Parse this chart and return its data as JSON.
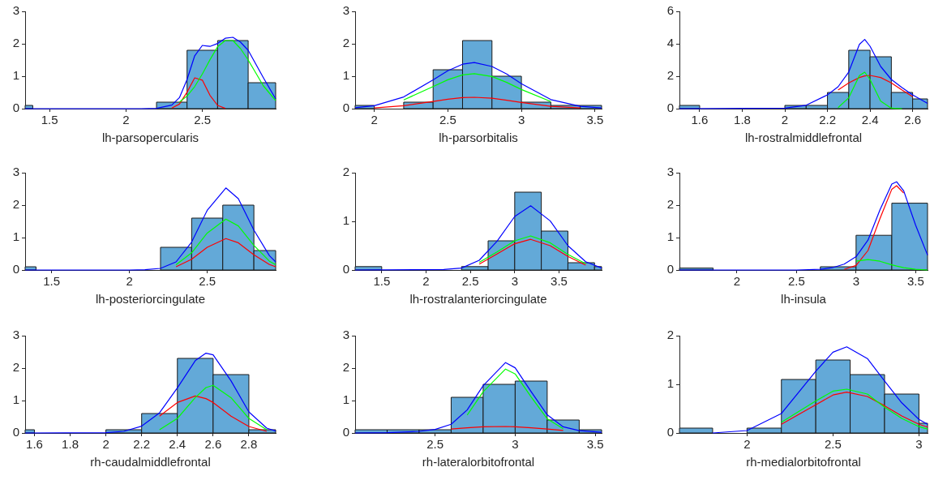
{
  "chart_data": [
    {
      "type": "histogram",
      "xlabel": "lh-parsopercularis",
      "bins": [
        1.34,
        1.39,
        2.2,
        2.4,
        2.6,
        2.8,
        2.98
      ],
      "values": [
        0.1,
        0,
        0.2,
        1.8,
        2.1,
        0.8
      ],
      "color": "#63a9d8",
      "xlim": [
        1.34,
        2.98
      ],
      "xticks": [
        1.5,
        2,
        2.5
      ],
      "ylim": [
        0,
        3
      ],
      "yticks": [
        0,
        1,
        2,
        3
      ],
      "series": [
        {
          "type": "line",
          "color": "#ff0000",
          "x": [
            2.3,
            2.35,
            2.4,
            2.45,
            2.5,
            2.55,
            2.6,
            2.65
          ],
          "values": [
            0.02,
            0.14,
            0.51,
            0.95,
            0.88,
            0.41,
            0.1,
            0.01
          ]
        },
        {
          "type": "line",
          "color": "#00ff00",
          "x": [
            2.35,
            2.4,
            2.45,
            2.5,
            2.55,
            2.6,
            2.65,
            2.7,
            2.75,
            2.8,
            2.9,
            2.98
          ],
          "values": [
            0.2,
            0.39,
            0.68,
            1.07,
            1.51,
            1.91,
            2.1,
            2.1,
            1.85,
            1.5,
            0.7,
            0.25
          ]
        },
        {
          "type": "line",
          "color": "#0000ff",
          "x": [
            1.34,
            2.1,
            2.2,
            2.3,
            2.35,
            2.4,
            2.45,
            2.5,
            2.55,
            2.6,
            2.65,
            2.7,
            2.75,
            2.8,
            2.9,
            2.98
          ],
          "values": [
            0,
            0,
            0.01,
            0.11,
            0.34,
            0.9,
            1.63,
            1.95,
            1.92,
            2.01,
            2.17,
            2.2,
            2.05,
            1.8,
            0.95,
            0.3
          ]
        }
      ]
    },
    {
      "type": "histogram",
      "xlabel": "lh-parsorbitalis",
      "bins": [
        1.87,
        2.0,
        2.2,
        2.4,
        2.6,
        2.8,
        3.0,
        3.2,
        3.4,
        3.545
      ],
      "values": [
        0.1,
        0,
        0.2,
        1.2,
        2.1,
        1.0,
        0.2,
        0.1,
        0.1
      ],
      "color": "#63a9d8",
      "xlim": [
        1.87,
        3.545
      ],
      "xticks": [
        2,
        2.5,
        3,
        3.5
      ],
      "ylim": [
        0,
        3
      ],
      "yticks": [
        0,
        1,
        2,
        3
      ],
      "series": [
        {
          "type": "line",
          "color": "#ff0000",
          "x": [
            2.0,
            2.2,
            2.4,
            2.5,
            2.6,
            2.68,
            2.8,
            2.9,
            3.0,
            3.2,
            3.4
          ],
          "values": [
            0.02,
            0.09,
            0.22,
            0.29,
            0.34,
            0.35,
            0.32,
            0.26,
            0.19,
            0.07,
            0.02
          ]
        },
        {
          "type": "line",
          "color": "#00ff00",
          "x": [
            2.2,
            2.4,
            2.5,
            2.6,
            2.68,
            2.8,
            2.9,
            3.0,
            3.2
          ],
          "values": [
            0.27,
            0.68,
            0.89,
            1.04,
            1.08,
            0.99,
            0.81,
            0.59,
            0.22
          ]
        },
        {
          "type": "line",
          "color": "#0000ff",
          "x": [
            1.87,
            2.0,
            2.2,
            2.4,
            2.5,
            2.6,
            2.68,
            2.8,
            2.9,
            3.0,
            3.2,
            3.4,
            3.545
          ],
          "values": [
            0.03,
            0.09,
            0.36,
            0.89,
            1.17,
            1.37,
            1.42,
            1.3,
            1.07,
            0.77,
            0.28,
            0.07,
            0.02
          ]
        }
      ]
    },
    {
      "type": "histogram",
      "xlabel": "lh-rostralmiddlefrontal",
      "bins": [
        1.505,
        1.6,
        2.0,
        2.1,
        2.2,
        2.3,
        2.4,
        2.5,
        2.6,
        2.67
      ],
      "values": [
        0.2,
        0,
        0.2,
        0.2,
        1.0,
        3.6,
        3.2,
        1.0,
        0.6
      ],
      "color": "#63a9d8",
      "xlim": [
        1.505,
        2.67
      ],
      "xticks": [
        1.6,
        1.8,
        2,
        2.2,
        2.4,
        2.6
      ],
      "ylim": [
        0,
        6
      ],
      "yticks": [
        0,
        2,
        4,
        6
      ],
      "series": [
        {
          "type": "line",
          "color": "#ff0000",
          "x": [
            2.25,
            2.3,
            2.35,
            2.375,
            2.4,
            2.45,
            2.5,
            2.55,
            2.6
          ],
          "values": [
            1.15,
            1.59,
            1.92,
            2.02,
            2.05,
            1.92,
            1.59,
            1.15,
            0.74
          ]
        },
        {
          "type": "line",
          "color": "#00ff00",
          "x": [
            2.25,
            2.3,
            2.35,
            2.375,
            2.4,
            2.45,
            2.5,
            2.55
          ],
          "values": [
            0.06,
            0.67,
            2.04,
            2.25,
            1.8,
            0.46,
            0.03,
            0
          ]
        },
        {
          "type": "line",
          "color": "#0000ff",
          "x": [
            1.505,
            2.0,
            2.1,
            2.2,
            2.25,
            2.3,
            2.35,
            2.375,
            2.4,
            2.45,
            2.5,
            2.55,
            2.6,
            2.67
          ],
          "values": [
            0,
            0.03,
            0.21,
            0.85,
            1.35,
            2.26,
            3.96,
            4.27,
            3.85,
            2.6,
            1.8,
            1.3,
            0.85,
            0.32
          ]
        }
      ]
    },
    {
      "type": "histogram",
      "xlabel": "lh-posteriorcingulate",
      "bins": [
        1.33,
        1.4,
        2.2,
        2.4,
        2.6,
        2.8,
        2.94
      ],
      "values": [
        0.1,
        0,
        0.7,
        1.6,
        2.0,
        0.6
      ],
      "color": "#63a9d8",
      "xlim": [
        1.33,
        2.94
      ],
      "xticks": [
        1.5,
        2,
        2.5
      ],
      "ylim": [
        0,
        3
      ],
      "yticks": [
        0,
        1,
        2,
        3
      ],
      "series": [
        {
          "type": "line",
          "color": "#ff0000",
          "x": [
            2.3,
            2.4,
            2.5,
            2.62,
            2.7,
            2.8,
            2.9,
            2.94
          ],
          "values": [
            0.1,
            0.33,
            0.7,
            0.97,
            0.84,
            0.47,
            0.17,
            0.1
          ]
        },
        {
          "type": "line",
          "color": "#00ff00",
          "x": [
            2.3,
            2.4,
            2.5,
            2.62,
            2.7,
            2.8,
            2.9,
            2.94
          ],
          "values": [
            0.16,
            0.53,
            1.14,
            1.57,
            1.36,
            0.76,
            0.27,
            0.16
          ]
        },
        {
          "type": "line",
          "color": "#0000ff",
          "x": [
            1.33,
            2.0,
            2.1,
            2.2,
            2.3,
            2.4,
            2.5,
            2.62,
            2.7,
            2.8,
            2.9,
            2.94
          ],
          "values": [
            0,
            0,
            0.01,
            0.05,
            0.25,
            0.86,
            1.84,
            2.53,
            2.2,
            1.23,
            0.44,
            0.25
          ]
        }
      ]
    },
    {
      "type": "histogram",
      "xlabel": "lh-rostralanteriorcingulate",
      "bins": [
        1.2,
        1.5,
        2.4,
        2.7,
        3.0,
        3.3,
        3.6,
        3.9,
        3.98
      ],
      "values": [
        0.07,
        0,
        0.07,
        0.6,
        1.6,
        0.8,
        0.15,
        0.07
      ],
      "color": "#63a9d8",
      "xlim": [
        1.2,
        3.98
      ],
      "xticks": [
        1.5,
        2,
        2.5,
        3,
        3.5
      ],
      "ylim": [
        0,
        2
      ],
      "yticks": [
        0,
        1,
        2
      ],
      "series": [
        {
          "type": "line",
          "color": "#ff0000",
          "x": [
            2.6,
            2.8,
            3.0,
            3.18,
            3.4,
            3.6,
            3.8
          ],
          "values": [
            0.12,
            0.33,
            0.54,
            0.63,
            0.5,
            0.28,
            0.1
          ]
        },
        {
          "type": "line",
          "color": "#00ff00",
          "x": [
            2.6,
            2.8,
            3.0,
            3.18,
            3.4,
            3.6,
            3.8
          ],
          "values": [
            0.16,
            0.37,
            0.6,
            0.7,
            0.56,
            0.32,
            0.13
          ]
        },
        {
          "type": "line",
          "color": "#0000ff",
          "x": [
            1.2,
            2.2,
            2.4,
            2.6,
            2.8,
            3.0,
            3.18,
            3.4,
            3.6,
            3.8,
            3.98
          ],
          "values": [
            0,
            0.01,
            0.04,
            0.2,
            0.59,
            1.1,
            1.32,
            1.01,
            0.5,
            0.17,
            0.04
          ]
        }
      ]
    },
    {
      "type": "histogram",
      "xlabel": "lh-insula",
      "bins": [
        1.517,
        1.8,
        2.7,
        3.0,
        3.3,
        3.6
      ],
      "values": [
        0.06,
        0,
        0.1,
        1.07,
        2.06
      ],
      "color": "#63a9d8",
      "xlim": [
        1.517,
        3.6
      ],
      "xticks": [
        2,
        2.5,
        3,
        3.5
      ],
      "ylim": [
        0,
        3
      ],
      "yticks": [
        0,
        1,
        2,
        3
      ],
      "series": [
        {
          "type": "line",
          "color": "#ff0000",
          "x": [
            2.9,
            3.0,
            3.1,
            3.2,
            3.3,
            3.34,
            3.4
          ],
          "values": [
            0.02,
            0.14,
            0.6,
            1.58,
            2.49,
            2.6,
            2.37
          ]
        },
        {
          "type": "line",
          "color": "#00ff00",
          "x": [
            3.0,
            3.1,
            3.2,
            3.3,
            3.34,
            3.4,
            3.5,
            3.6
          ],
          "values": [
            0.27,
            0.32,
            0.27,
            0.16,
            0.12,
            0.07,
            0.02,
            0
          ]
        },
        {
          "type": "line",
          "color": "#0000ff",
          "x": [
            1.517,
            2.5,
            2.7,
            2.8,
            2.9,
            3.0,
            3.1,
            3.2,
            3.3,
            3.34,
            3.4,
            3.5,
            3.6
          ],
          "values": [
            0,
            0,
            0.02,
            0.07,
            0.18,
            0.41,
            0.92,
            1.85,
            2.65,
            2.72,
            2.44,
            1.38,
            0.46
          ]
        }
      ]
    },
    {
      "type": "histogram",
      "xlabel": "rh-caudalmiddlefrontal",
      "bins": [
        1.548,
        1.6,
        2.0,
        2.2,
        2.4,
        2.6,
        2.8,
        2.95
      ],
      "values": [
        0.1,
        0,
        0.1,
        0.6,
        2.3,
        1.8,
        0.1
      ],
      "color": "#63a9d8",
      "xlim": [
        1.548,
        2.95
      ],
      "xticks": [
        1.6,
        1.8,
        2,
        2.2,
        2.4,
        2.6,
        2.8
      ],
      "ylim": [
        0,
        3
      ],
      "yticks": [
        0,
        1,
        2,
        3
      ],
      "series": [
        {
          "type": "line",
          "color": "#ff0000",
          "x": [
            2.3,
            2.4,
            2.5,
            2.56,
            2.6,
            2.7,
            2.8,
            2.9
          ],
          "values": [
            0.52,
            0.94,
            1.14,
            1.06,
            0.94,
            0.52,
            0.2,
            0.05
          ]
        },
        {
          "type": "line",
          "color": "#00ff00",
          "x": [
            2.3,
            2.4,
            2.5,
            2.56,
            2.6,
            2.7,
            2.8,
            2.9
          ],
          "values": [
            0.1,
            0.45,
            1.09,
            1.4,
            1.47,
            1.09,
            0.45,
            0.1
          ]
        },
        {
          "type": "line",
          "color": "#0000ff",
          "x": [
            1.548,
            2.0,
            2.1,
            2.2,
            2.3,
            2.4,
            2.5,
            2.56,
            2.6,
            2.7,
            2.8,
            2.9,
            2.95
          ],
          "values": [
            0,
            0.01,
            0.05,
            0.21,
            0.62,
            1.39,
            2.23,
            2.46,
            2.41,
            1.61,
            0.65,
            0.15,
            0.06
          ]
        }
      ]
    },
    {
      "type": "histogram",
      "xlabel": "rh-lateralorbitofrontal",
      "bins": [
        2.0,
        2.2,
        2.4,
        2.6,
        2.8,
        3.0,
        3.2,
        3.4,
        3.54
      ],
      "values": [
        0.1,
        0.1,
        0.1,
        1.1,
        1.5,
        1.6,
        0.4,
        0.1
      ],
      "color": "#63a9d8",
      "xlim": [
        2.0,
        3.54
      ],
      "xticks": [
        2.5,
        3,
        3.5
      ],
      "ylim": [
        0,
        3
      ],
      "yticks": [
        0,
        1,
        2,
        3
      ],
      "series": [
        {
          "type": "line",
          "color": "#ff0000",
          "x": [
            2.6,
            2.7,
            2.8,
            2.94,
            3.0,
            3.1,
            3.2,
            3.3
          ],
          "values": [
            0.12,
            0.16,
            0.19,
            0.2,
            0.19,
            0.16,
            0.12,
            0.08
          ]
        },
        {
          "type": "line",
          "color": "#00ff00",
          "x": [
            2.7,
            2.8,
            2.94,
            3.0,
            3.1,
            3.2,
            3.3
          ],
          "values": [
            0.55,
            1.27,
            1.97,
            1.82,
            1.11,
            0.44,
            0.13
          ]
        },
        {
          "type": "line",
          "color": "#0000ff",
          "x": [
            2.0,
            2.2,
            2.4,
            2.5,
            2.6,
            2.7,
            2.8,
            2.94,
            3.0,
            3.1,
            3.2,
            3.3,
            3.4,
            3.54
          ],
          "values": [
            0,
            0.01,
            0.05,
            0.11,
            0.27,
            0.71,
            1.46,
            2.17,
            2.01,
            1.27,
            0.56,
            0.19,
            0.07,
            0.02
          ]
        }
      ]
    },
    {
      "type": "histogram",
      "xlabel": "rh-medialorbitofrontal",
      "bins": [
        1.607,
        1.8,
        2.0,
        2.2,
        2.4,
        2.6,
        2.8,
        3.0,
        3.05
      ],
      "values": [
        0.1,
        0,
        0.1,
        1.1,
        1.5,
        1.2,
        0.8,
        0.2
      ],
      "color": "#63a9d8",
      "xlim": [
        1.607,
        3.05
      ],
      "xticks": [
        2,
        2.5,
        3
      ],
      "ylim": [
        0,
        2
      ],
      "yticks": [
        0,
        1,
        2
      ],
      "series": [
        {
          "type": "line",
          "color": "#ff0000",
          "x": [
            2.2,
            2.4,
            2.5,
            2.58,
            2.7,
            2.8,
            2.9,
            3.0,
            3.05
          ],
          "values": [
            0.18,
            0.58,
            0.78,
            0.84,
            0.75,
            0.56,
            0.35,
            0.18,
            0.12
          ]
        },
        {
          "type": "line",
          "color": "#00ff00",
          "x": [
            2.2,
            2.4,
            2.5,
            2.58,
            2.7,
            2.8,
            2.9,
            3.0,
            3.05
          ],
          "values": [
            0.22,
            0.66,
            0.86,
            0.9,
            0.8,
            0.53,
            0.3,
            0.13,
            0.08
          ]
        },
        {
          "type": "line",
          "color": "#0000ff",
          "x": [
            1.8,
            2.0,
            2.2,
            2.4,
            2.5,
            2.58,
            2.7,
            2.8,
            2.9,
            3.0,
            3.05
          ],
          "values": [
            0,
            0.05,
            0.4,
            1.27,
            1.66,
            1.77,
            1.53,
            1.07,
            0.62,
            0.28,
            0.18
          ]
        }
      ]
    }
  ]
}
